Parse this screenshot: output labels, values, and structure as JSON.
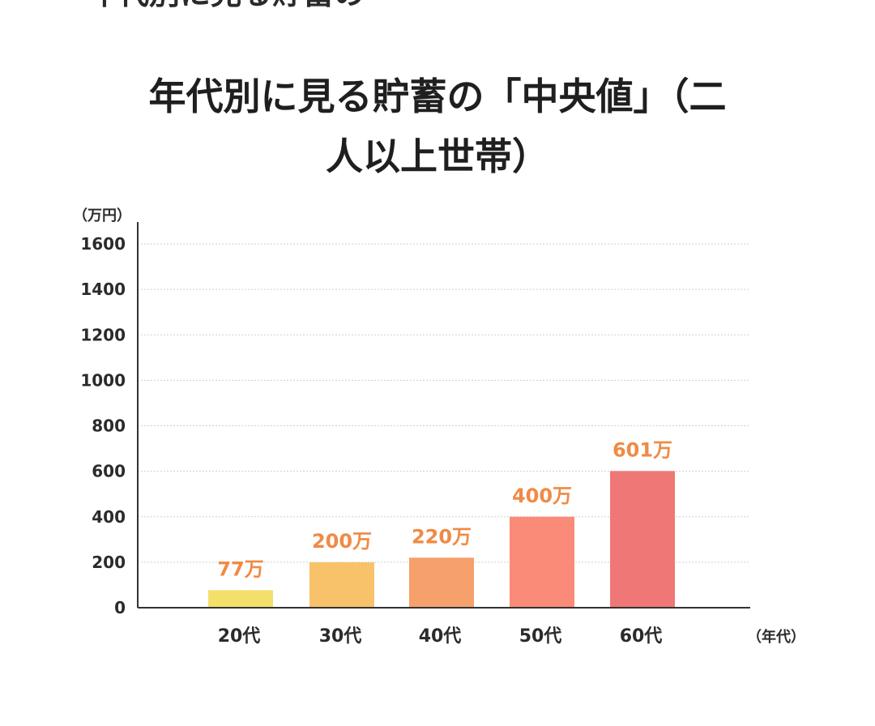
{
  "page": {
    "cut_text": "年代別に見る貯蓄の",
    "title_line1": "年代別に見る貯蓄の「中央値」（二",
    "title_line2": "人以上世帯）"
  },
  "chart_data": {
    "type": "bar",
    "title": "年代別に見る貯蓄の「中央値」（二人以上世帯）",
    "y_unit": "（万円）",
    "x_unit": "（年代）",
    "categories": [
      "20代",
      "30代",
      "40代",
      "50代",
      "60代"
    ],
    "values": [
      77,
      200,
      220,
      400,
      601
    ],
    "data_labels": [
      "77万",
      "200万",
      "220万",
      "400万",
      "601万"
    ],
    "ylim": [
      0,
      1600
    ],
    "yticks": [
      0,
      200,
      400,
      600,
      800,
      1000,
      1200,
      1400,
      1600
    ],
    "grid": true,
    "colors": {
      "bars": [
        "#F3E06A",
        "#F8C26A",
        "#F6A06C",
        "#FA8B78",
        "#EF7775"
      ],
      "data_label": "#F08A45",
      "axis": "#333333",
      "grid": "#CFCFCF"
    }
  }
}
